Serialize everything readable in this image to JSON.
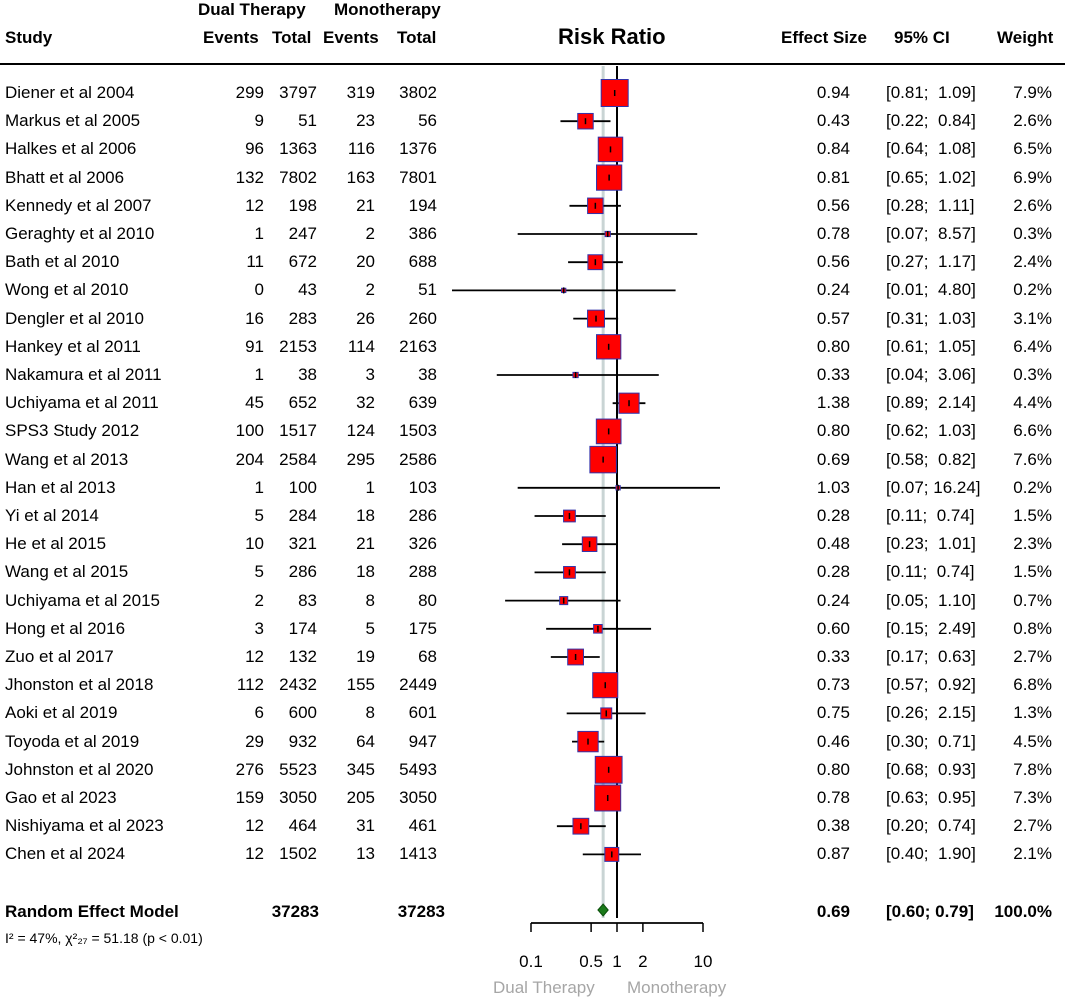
{
  "header": {
    "group1": "Dual Therapy",
    "group2": "Monotherapy",
    "study": "Study",
    "events1": "Events",
    "total1": "Total",
    "events2": "Events",
    "total2": "Total",
    "plot_title": "Risk Ratio",
    "effect": "Effect Size",
    "ci": "95% CI",
    "weight": "Weight"
  },
  "summary": {
    "label": "Random Effect Model",
    "total1": "37283",
    "total2": "37283",
    "effect": "0.69",
    "ci": "[0.60;  0.79]",
    "weight": "100.0%",
    "heterogeneity": "I² = 47%, χ²₂₇ = 51.18 (p < 0.01)"
  },
  "axis": {
    "ticks": [
      "0.1",
      "0.5",
      "1",
      "2",
      "10"
    ],
    "left_label": "Dual Therapy",
    "right_label": "Monotherapy"
  },
  "colors": {
    "box": "#ff0000",
    "box_border": "#3333aa",
    "diamond": "#1a7a1a",
    "ref_line": "#c9d4d4",
    "axis_label": "#a6a6a6"
  },
  "chart_data": {
    "type": "forest",
    "title": "Risk Ratio",
    "scale": "log",
    "xlim": [
      0.1,
      10
    ],
    "tick_values": [
      0.1,
      0.5,
      1,
      2,
      10
    ],
    "null_value": 1,
    "pooled": {
      "rr": 0.69,
      "lo": 0.6,
      "hi": 0.79,
      "weight": 100.0
    },
    "studies": [
      {
        "name": "Diener et al 2004",
        "e1": "299",
        "n1": "3797",
        "e2": "319",
        "n2": "3802",
        "rr": 0.94,
        "lo": 0.81,
        "hi": 1.09,
        "rr_s": "0.94",
        "ci_s": "[0.81;  1.09]",
        "w": 7.9,
        "w_s": "7.9%"
      },
      {
        "name": "Markus et al 2005",
        "e1": "9",
        "n1": "51",
        "e2": "23",
        "n2": "56",
        "rr": 0.43,
        "lo": 0.22,
        "hi": 0.84,
        "rr_s": "0.43",
        "ci_s": "[0.22;  0.84]",
        "w": 2.6,
        "w_s": "2.6%"
      },
      {
        "name": "Halkes et al 2006",
        "e1": "96",
        "n1": "1363",
        "e2": "116",
        "n2": "1376",
        "rr": 0.84,
        "lo": 0.64,
        "hi": 1.08,
        "rr_s": "0.84",
        "ci_s": "[0.64;  1.08]",
        "w": 6.5,
        "w_s": "6.5%"
      },
      {
        "name": "Bhatt et al 2006",
        "e1": "132",
        "n1": "7802",
        "e2": "163",
        "n2": "7801",
        "rr": 0.81,
        "lo": 0.65,
        "hi": 1.02,
        "rr_s": "0.81",
        "ci_s": "[0.65;  1.02]",
        "w": 6.9,
        "w_s": "6.9%"
      },
      {
        "name": "Kennedy et al 2007",
        "e1": "12",
        "n1": "198",
        "e2": "21",
        "n2": "194",
        "rr": 0.56,
        "lo": 0.28,
        "hi": 1.11,
        "rr_s": "0.56",
        "ci_s": "[0.28;  1.11]",
        "w": 2.6,
        "w_s": "2.6%"
      },
      {
        "name": "Geraghty et al 2010",
        "e1": "1",
        "n1": "247",
        "e2": "2",
        "n2": "386",
        "rr": 0.78,
        "lo": 0.07,
        "hi": 8.57,
        "rr_s": "0.78",
        "ci_s": "[0.07;  8.57]",
        "w": 0.3,
        "w_s": "0.3%"
      },
      {
        "name": "Bath et al 2010",
        "e1": "11",
        "n1": "672",
        "e2": "20",
        "n2": "688",
        "rr": 0.56,
        "lo": 0.27,
        "hi": 1.17,
        "rr_s": "0.56",
        "ci_s": "[0.27;  1.17]",
        "w": 2.4,
        "w_s": "2.4%"
      },
      {
        "name": "Wong et al 2010",
        "e1": "0",
        "n1": "43",
        "e2": "2",
        "n2": "51",
        "rr": 0.24,
        "lo": 0.01,
        "hi": 4.8,
        "rr_s": "0.24",
        "ci_s": "[0.01;  4.80]",
        "w": 0.2,
        "w_s": "0.2%"
      },
      {
        "name": "Dengler et al 2010",
        "e1": "16",
        "n1": "283",
        "e2": "26",
        "n2": "260",
        "rr": 0.57,
        "lo": 0.31,
        "hi": 1.03,
        "rr_s": "0.57",
        "ci_s": "[0.31;  1.03]",
        "w": 3.1,
        "w_s": "3.1%"
      },
      {
        "name": "Hankey et al 2011",
        "e1": "91",
        "n1": "2153",
        "e2": "114",
        "n2": "2163",
        "rr": 0.8,
        "lo": 0.61,
        "hi": 1.05,
        "rr_s": "0.80",
        "ci_s": "[0.61;  1.05]",
        "w": 6.4,
        "w_s": "6.4%"
      },
      {
        "name": "Nakamura et al 2011",
        "e1": "1",
        "n1": "38",
        "e2": "3",
        "n2": "38",
        "rr": 0.33,
        "lo": 0.04,
        "hi": 3.06,
        "rr_s": "0.33",
        "ci_s": "[0.04;  3.06]",
        "w": 0.3,
        "w_s": "0.3%"
      },
      {
        "name": "Uchiyama et al 2011",
        "e1": "45",
        "n1": "652",
        "e2": "32",
        "n2": "639",
        "rr": 1.38,
        "lo": 0.89,
        "hi": 2.14,
        "rr_s": "1.38",
        "ci_s": "[0.89;  2.14]",
        "w": 4.4,
        "w_s": "4.4%"
      },
      {
        "name": "SPS3 Study 2012",
        "e1": "100",
        "n1": "1517",
        "e2": "124",
        "n2": "1503",
        "rr": 0.8,
        "lo": 0.62,
        "hi": 1.03,
        "rr_s": "0.80",
        "ci_s": "[0.62;  1.03]",
        "w": 6.6,
        "w_s": "6.6%"
      },
      {
        "name": "Wang et al 2013",
        "e1": "204",
        "n1": "2584",
        "e2": "295",
        "n2": "2586",
        "rr": 0.69,
        "lo": 0.58,
        "hi": 0.82,
        "rr_s": "0.69",
        "ci_s": "[0.58;  0.82]",
        "w": 7.6,
        "w_s": "7.6%"
      },
      {
        "name": "Han et al 2013",
        "e1": "1",
        "n1": "100",
        "e2": "1",
        "n2": "103",
        "rr": 1.03,
        "lo": 0.07,
        "hi": 16.24,
        "rr_s": "1.03",
        "ci_s": "[0.07; 16.24]",
        "w": 0.2,
        "w_s": "0.2%"
      },
      {
        "name": "Yi et al 2014",
        "e1": "5",
        "n1": "284",
        "e2": "18",
        "n2": "286",
        "rr": 0.28,
        "lo": 0.11,
        "hi": 0.74,
        "rr_s": "0.28",
        "ci_s": "[0.11;  0.74]",
        "w": 1.5,
        "w_s": "1.5%"
      },
      {
        "name": "He et al 2015",
        "e1": "10",
        "n1": "321",
        "e2": "21",
        "n2": "326",
        "rr": 0.48,
        "lo": 0.23,
        "hi": 1.01,
        "rr_s": "0.48",
        "ci_s": "[0.23;  1.01]",
        "w": 2.3,
        "w_s": "2.3%"
      },
      {
        "name": "Wang et al 2015",
        "e1": "5",
        "n1": "286",
        "e2": "18",
        "n2": "288",
        "rr": 0.28,
        "lo": 0.11,
        "hi": 0.74,
        "rr_s": "0.28",
        "ci_s": "[0.11;  0.74]",
        "w": 1.5,
        "w_s": "1.5%"
      },
      {
        "name": "Uchiyama et al 2015",
        "e1": "2",
        "n1": "83",
        "e2": "8",
        "n2": "80",
        "rr": 0.24,
        "lo": 0.05,
        "hi": 1.1,
        "rr_s": "0.24",
        "ci_s": "[0.05;  1.10]",
        "w": 0.7,
        "w_s": "0.7%"
      },
      {
        "name": "Hong et al 2016",
        "e1": "3",
        "n1": "174",
        "e2": "5",
        "n2": "175",
        "rr": 0.6,
        "lo": 0.15,
        "hi": 2.49,
        "rr_s": "0.60",
        "ci_s": "[0.15;  2.49]",
        "w": 0.8,
        "w_s": "0.8%"
      },
      {
        "name": "Zuo et al 2017",
        "e1": "12",
        "n1": "132",
        "e2": "19",
        "n2": "68",
        "rr": 0.33,
        "lo": 0.17,
        "hi": 0.63,
        "rr_s": "0.33",
        "ci_s": "[0.17;  0.63]",
        "w": 2.7,
        "w_s": "2.7%"
      },
      {
        "name": "Jhonston et al 2018",
        "e1": "112",
        "n1": "2432",
        "e2": "155",
        "n2": "2449",
        "rr": 0.73,
        "lo": 0.57,
        "hi": 0.92,
        "rr_s": "0.73",
        "ci_s": "[0.57;  0.92]",
        "w": 6.8,
        "w_s": "6.8%"
      },
      {
        "name": "Aoki et al 2019",
        "e1": "6",
        "n1": "600",
        "e2": "8",
        "n2": "601",
        "rr": 0.75,
        "lo": 0.26,
        "hi": 2.15,
        "rr_s": "0.75",
        "ci_s": "[0.26;  2.15]",
        "w": 1.3,
        "w_s": "1.3%"
      },
      {
        "name": "Toyoda et al 2019",
        "e1": "29",
        "n1": "932",
        "e2": "64",
        "n2": "947",
        "rr": 0.46,
        "lo": 0.3,
        "hi": 0.71,
        "rr_s": "0.46",
        "ci_s": "[0.30;  0.71]",
        "w": 4.5,
        "w_s": "4.5%"
      },
      {
        "name": "Johnston et al 2020",
        "e1": "276",
        "n1": "5523",
        "e2": "345",
        "n2": "5493",
        "rr": 0.8,
        "lo": 0.68,
        "hi": 0.93,
        "rr_s": "0.80",
        "ci_s": "[0.68;  0.93]",
        "w": 7.8,
        "w_s": "7.8%"
      },
      {
        "name": "Gao et al 2023",
        "e1": "159",
        "n1": "3050",
        "e2": "205",
        "n2": "3050",
        "rr": 0.78,
        "lo": 0.63,
        "hi": 0.95,
        "rr_s": "0.78",
        "ci_s": "[0.63;  0.95]",
        "w": 7.3,
        "w_s": "7.3%"
      },
      {
        "name": "Nishiyama et al 2023",
        "e1": "12",
        "n1": "464",
        "e2": "31",
        "n2": "461",
        "rr": 0.38,
        "lo": 0.2,
        "hi": 0.74,
        "rr_s": "0.38",
        "ci_s": "[0.20;  0.74]",
        "w": 2.7,
        "w_s": "2.7%"
      },
      {
        "name": "Chen et al 2024",
        "e1": "12",
        "n1": "1502",
        "e2": "13",
        "n2": "1413",
        "rr": 0.87,
        "lo": 0.4,
        "hi": 1.9,
        "rr_s": "0.87",
        "ci_s": "[0.40;  1.90]",
        "w": 2.1,
        "w_s": "2.1%"
      }
    ]
  }
}
